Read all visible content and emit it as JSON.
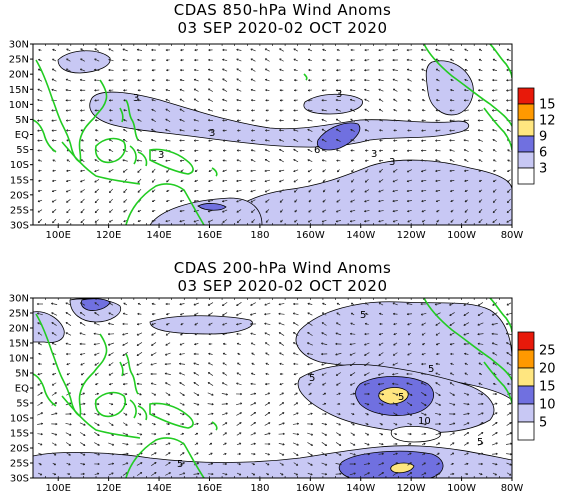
{
  "panels": [
    {
      "title_line1": "CDAS 850-hPa Wind Anoms",
      "title_line2": "03 SEP 2020-02 OCT 2020",
      "lat_labels": [
        "30N",
        "25N",
        "20N",
        "15N",
        "10N",
        "5N",
        "EQ",
        "5S",
        "10S",
        "15S",
        "20S",
        "25S",
        "30S"
      ],
      "lon_labels": [
        "100E",
        "120E",
        "140E",
        "160E",
        "180",
        "160W",
        "140W",
        "120W",
        "100W",
        "80W"
      ],
      "colorbar": {
        "labels": [
          "15",
          "12",
          "9",
          "6",
          "3"
        ],
        "colors": [
          "#e8190a",
          "#ff9900",
          "#ffe680",
          "#7070e0",
          "#c8c8f4",
          "#ffffff"
        ]
      },
      "contour_labels": [
        "3",
        "3",
        "3",
        "3",
        "6",
        "3",
        "3"
      ]
    },
    {
      "title_line1": "CDAS 200-hPa Wind Anoms",
      "title_line2": "03 SEP 2020-02 OCT 2020",
      "lat_labels": [
        "30N",
        "25N",
        "20N",
        "15N",
        "10N",
        "5N",
        "EQ",
        "5S",
        "10S",
        "15S",
        "20S",
        "25S",
        "30S"
      ],
      "lon_labels": [
        "100E",
        "120E",
        "140E",
        "160E",
        "180",
        "160W",
        "140W",
        "120W",
        "100W",
        "80W"
      ],
      "colorbar": {
        "labels": [
          "25",
          "20",
          "15",
          "10",
          "5"
        ],
        "colors": [
          "#e8190a",
          "#ff9900",
          "#ffe680",
          "#7070e0",
          "#c8c8f4",
          "#ffffff"
        ]
      },
      "contour_labels": [
        "5",
        "5",
        "5",
        "5",
        "10",
        "5",
        "5"
      ]
    }
  ],
  "colors": {
    "coast": "#22cc22",
    "shade_low": "#c8c8f4",
    "shade_mid": "#7070e0",
    "shade_high": "#ffe680",
    "frame": "#000000"
  }
}
